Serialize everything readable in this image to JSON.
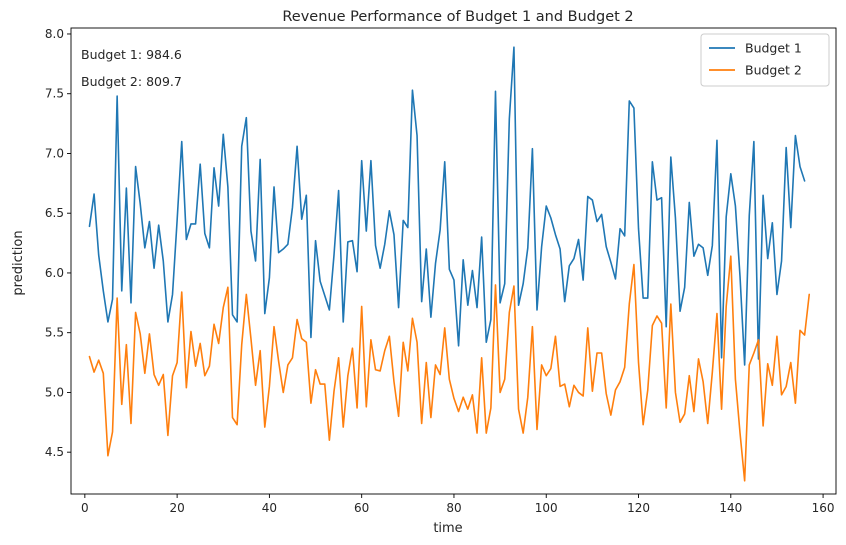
{
  "chart_data": {
    "type": "line",
    "title": "Revenue Performance of Budget 1 and Budget 2",
    "xlabel": "time",
    "ylabel": "prediction",
    "xlim": [
      -3.0,
      162.8
    ],
    "ylim": [
      4.15,
      8.05
    ],
    "xticks": [
      0,
      20,
      40,
      60,
      80,
      100,
      120,
      140,
      160
    ],
    "yticks": [
      4.5,
      5.0,
      5.5,
      6.0,
      6.5,
      7.0,
      7.5,
      8.0
    ],
    "ytick_labels": [
      "4.5",
      "5.0",
      "5.5",
      "6.0",
      "6.5",
      "7.0",
      "7.5",
      "8.0"
    ],
    "grid": false,
    "legend_position": "top-right",
    "annotations": [
      "Budget 1: 984.6",
      "Budget 2: 809.7"
    ],
    "x_start": 1,
    "series": [
      {
        "name": "Budget 1",
        "color": "#1f77b4",
        "values": [
          6.39,
          6.66,
          6.15,
          5.85,
          5.59,
          5.78,
          7.48,
          5.85,
          6.71,
          5.75,
          6.89,
          6.58,
          6.21,
          6.43,
          6.04,
          6.4,
          6.1,
          5.59,
          5.82,
          6.44,
          7.1,
          6.28,
          6.41,
          6.41,
          6.91,
          6.33,
          6.21,
          6.88,
          6.56,
          7.16,
          6.72,
          5.65,
          5.59,
          7.06,
          7.3,
          6.35,
          6.1,
          6.95,
          5.66,
          5.96,
          6.72,
          6.17,
          6.2,
          6.24,
          6.55,
          7.06,
          6.45,
          6.65,
          5.46,
          6.27,
          5.93,
          5.81,
          5.69,
          6.15,
          6.69,
          5.59,
          6.26,
          6.27,
          6.01,
          6.94,
          6.35,
          6.94,
          6.23,
          6.04,
          6.24,
          6.52,
          6.32,
          5.71,
          6.44,
          6.38,
          7.53,
          7.15,
          5.76,
          6.2,
          5.63,
          6.08,
          6.36,
          6.93,
          6.03,
          5.94,
          5.39,
          6.11,
          5.73,
          6.02,
          5.71,
          6.3,
          5.42,
          5.61,
          7.52,
          5.75,
          5.91,
          7.29,
          7.89,
          5.73,
          5.91,
          6.21,
          7.04,
          5.69,
          6.22,
          6.56,
          6.46,
          6.32,
          6.2,
          5.76,
          6.06,
          6.12,
          6.28,
          5.94,
          6.64,
          6.61,
          6.43,
          6.49,
          6.22,
          6.09,
          5.95,
          6.37,
          6.31,
          7.44,
          7.38,
          6.37,
          5.79,
          5.79,
          6.93,
          6.61,
          6.63,
          5.55,
          6.97,
          6.46,
          5.68,
          5.88,
          6.59,
          6.14,
          6.24,
          6.21,
          5.98,
          6.23,
          7.11,
          5.29,
          6.47,
          6.83,
          6.56,
          5.97,
          5.23,
          6.48,
          7.1,
          5.28,
          6.65,
          6.12,
          6.42,
          5.82,
          6.1,
          7.05,
          6.38,
          7.15,
          6.89,
          6.77
        ]
      },
      {
        "name": "Budget 2",
        "color": "#ff7f0e",
        "values": [
          5.3,
          5.17,
          5.27,
          5.16,
          4.47,
          4.67,
          5.79,
          4.9,
          5.4,
          4.74,
          5.67,
          5.49,
          5.16,
          5.49,
          5.15,
          5.06,
          5.15,
          4.64,
          5.14,
          5.25,
          5.84,
          5.04,
          5.51,
          5.22,
          5.41,
          5.14,
          5.22,
          5.57,
          5.41,
          5.71,
          5.88,
          4.79,
          4.73,
          5.4,
          5.82,
          5.45,
          5.06,
          5.35,
          4.71,
          5.05,
          5.55,
          5.26,
          5.0,
          5.23,
          5.29,
          5.61,
          5.45,
          5.42,
          4.91,
          5.19,
          5.07,
          5.07,
          4.6,
          5.01,
          5.29,
          4.71,
          5.14,
          5.37,
          4.87,
          5.72,
          4.88,
          5.44,
          5.19,
          5.18,
          5.35,
          5.47,
          5.09,
          4.8,
          5.42,
          5.18,
          5.62,
          5.42,
          4.74,
          5.25,
          4.79,
          5.23,
          5.15,
          5.54,
          5.11,
          4.95,
          4.84,
          4.96,
          4.86,
          4.98,
          4.66,
          5.29,
          4.66,
          4.87,
          5.9,
          5.0,
          5.11,
          5.67,
          5.89,
          4.86,
          4.66,
          4.96,
          5.55,
          4.69,
          5.23,
          5.14,
          5.2,
          5.47,
          5.05,
          5.07,
          4.88,
          5.06,
          5.0,
          4.97,
          5.54,
          5.01,
          5.33,
          5.33,
          4.99,
          4.81,
          5.02,
          5.09,
          5.21,
          5.74,
          6.07,
          5.25,
          4.73,
          5.02,
          5.56,
          5.64,
          5.58,
          4.87,
          5.74,
          5.0,
          4.75,
          4.82,
          5.14,
          4.84,
          5.28,
          5.09,
          4.74,
          5.17,
          5.66,
          4.86,
          5.72,
          6.14,
          5.11,
          4.66,
          4.26,
          5.23,
          5.33,
          5.44,
          4.72,
          5.24,
          5.06,
          5.47,
          4.98,
          5.05,
          5.25,
          4.91,
          5.52,
          5.48,
          5.82
        ]
      }
    ]
  }
}
